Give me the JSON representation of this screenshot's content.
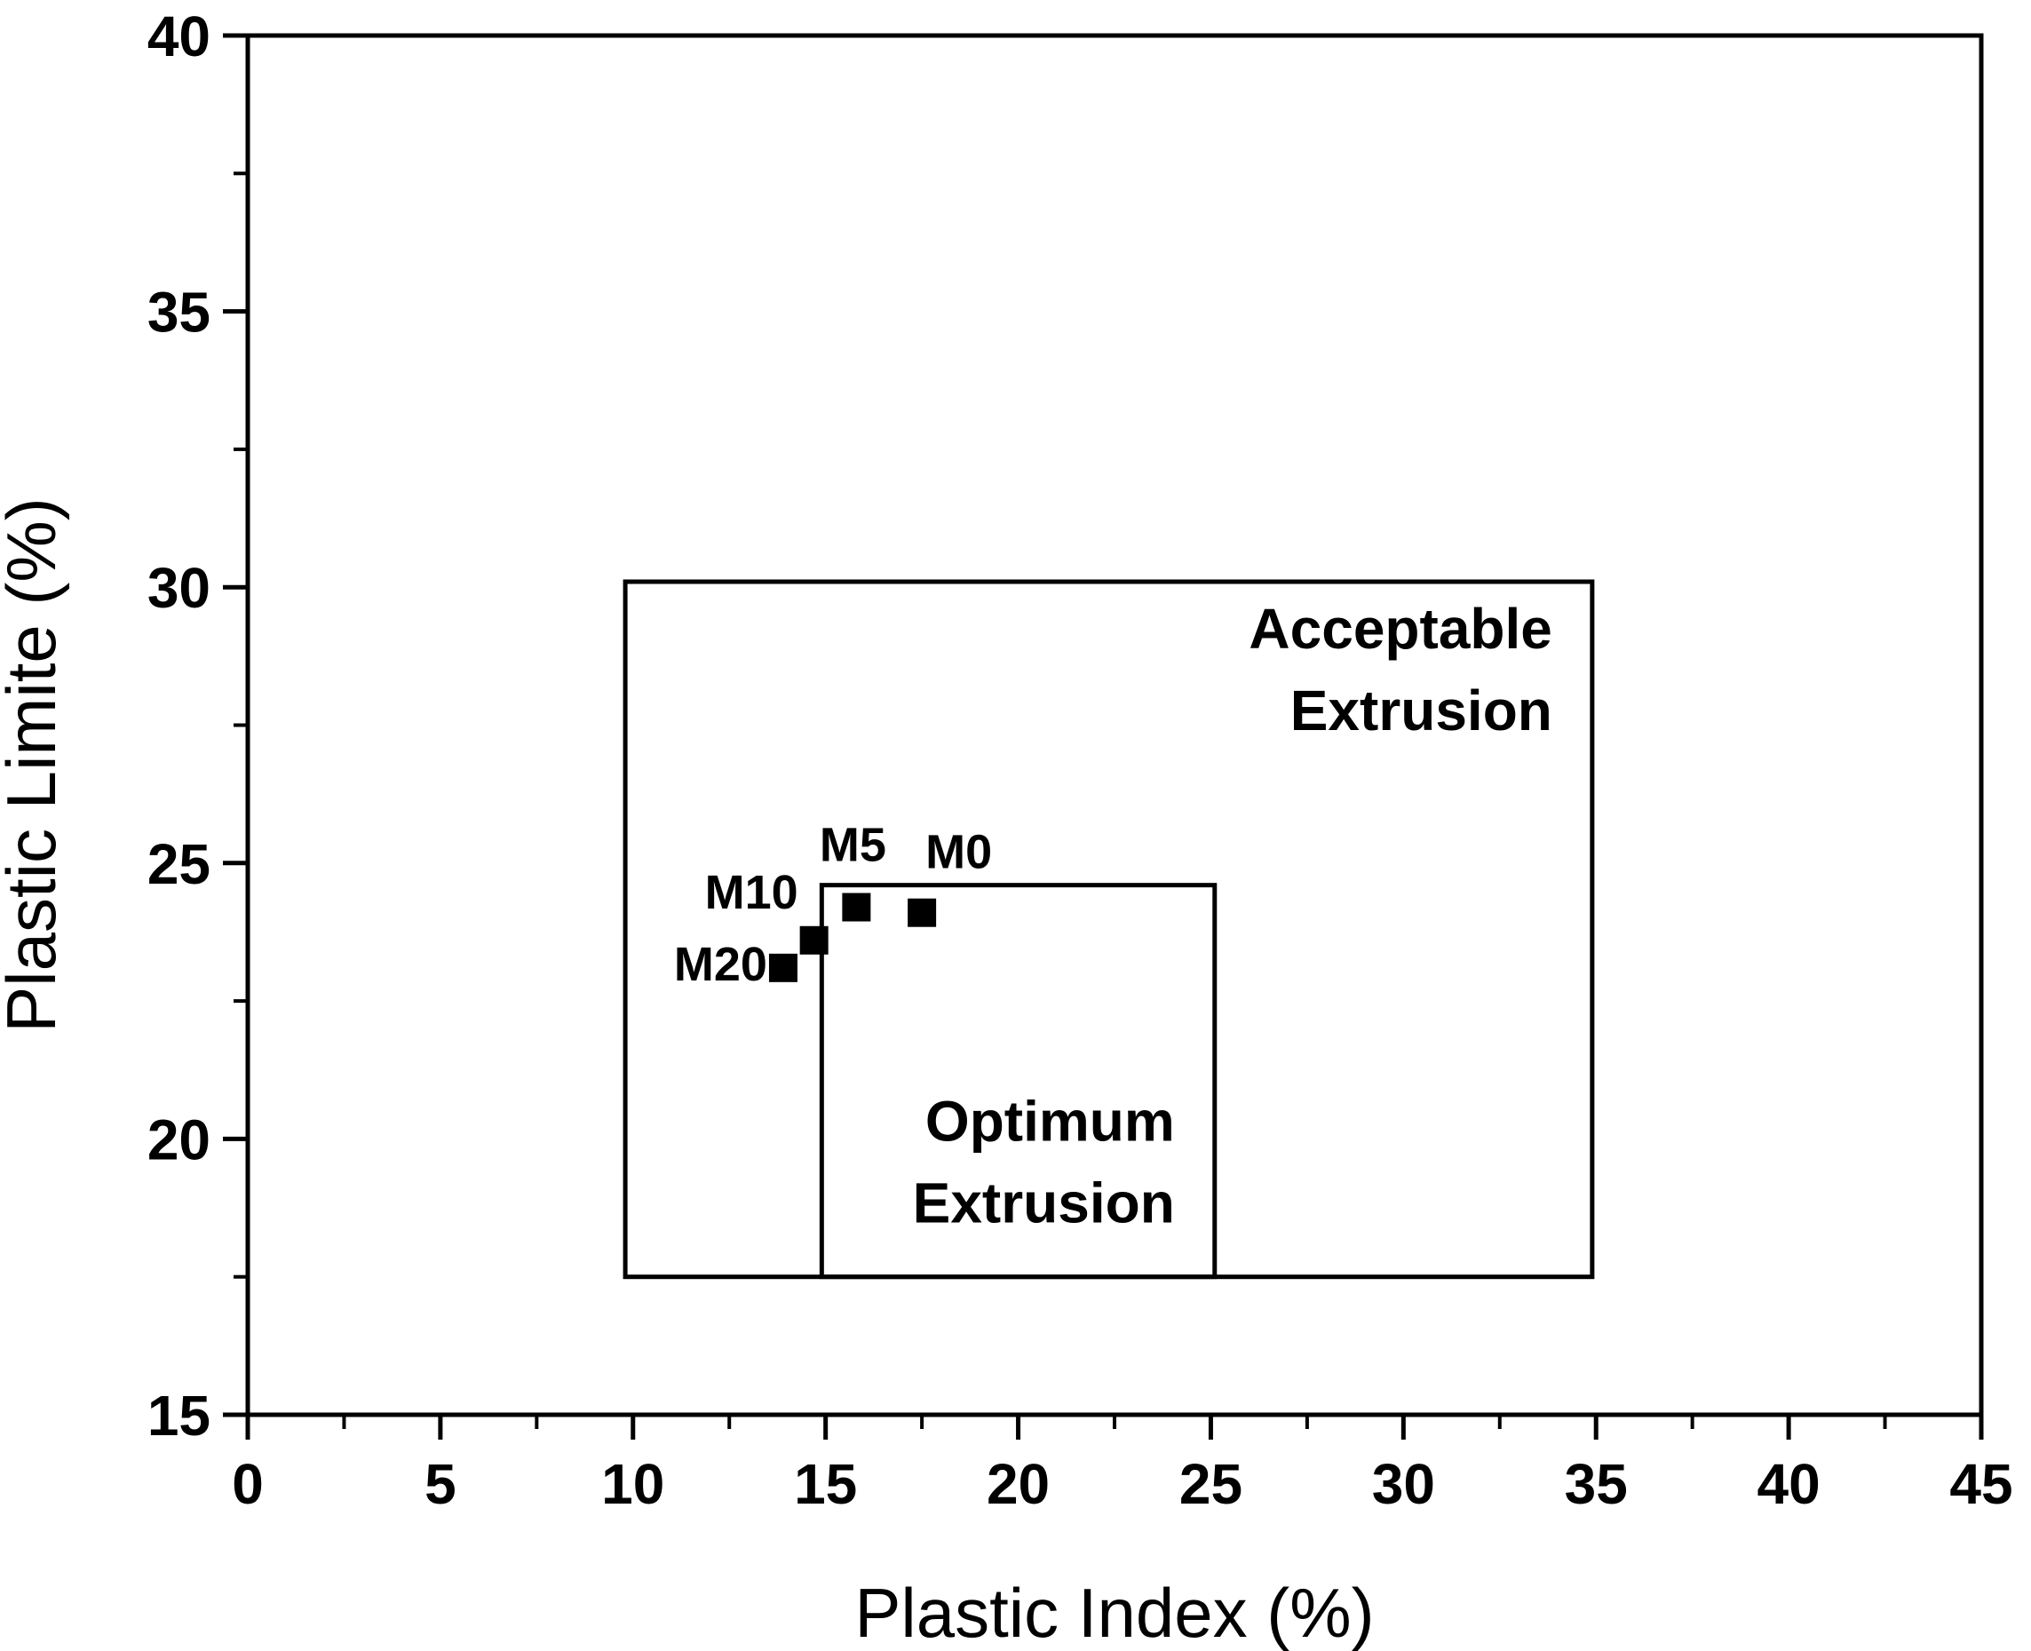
{
  "chart_data": {
    "type": "scatter",
    "xlabel": "Plastic Index (%)",
    "ylabel": "Plastic Limite (%)",
    "xlim": [
      0,
      45
    ],
    "ylim": [
      15,
      40
    ],
    "x_ticks": [
      0,
      5,
      10,
      15,
      20,
      25,
      30,
      35,
      40,
      45
    ],
    "y_ticks": [
      15,
      20,
      25,
      30,
      35,
      40
    ],
    "grid": false,
    "regions": [
      {
        "label_lines": [
          "Acceptable",
          "Extrusion"
        ],
        "x_range": [
          9.8,
          34.9
        ],
        "y_range": [
          17.5,
          30.1
        ]
      },
      {
        "label_lines": [
          "Optimum",
          "Extrusion"
        ],
        "x_range": [
          14.9,
          25.1
        ],
        "y_range": [
          17.5,
          24.6
        ]
      }
    ],
    "series": [
      {
        "marker": "square",
        "color": "#000000",
        "points": [
          {
            "label": "M0",
            "x": 17.5,
            "y": 24.1
          },
          {
            "label": "M5",
            "x": 15.8,
            "y": 24.2
          },
          {
            "label": "M10",
            "x": 14.7,
            "y": 23.6
          },
          {
            "label": "M20",
            "x": 13.9,
            "y": 23.1
          }
        ]
      }
    ]
  }
}
